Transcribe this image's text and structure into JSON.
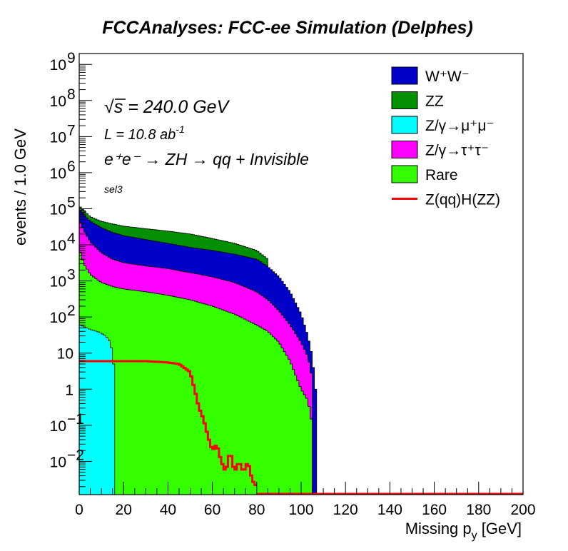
{
  "chart_data": {
    "type": "histogram-stacked",
    "title": "FCCAnalyses: FCC-ee Simulation (Delphes)",
    "xlabel": "Missing p_y [GeV]",
    "ylabel": "events / 1.0 GeV",
    "xlim": [
      0,
      200
    ],
    "ylim": [
      0.0012,
      2000000000
    ],
    "ylog": true,
    "legend_position": "top-right",
    "x_ticks": [
      0,
      20,
      40,
      60,
      80,
      100,
      120,
      140,
      160,
      180,
      200
    ],
    "y_ticks": [
      {
        "value": 1000000000.0,
        "label": "10",
        "exp": "9"
      },
      {
        "value": 100000000.0,
        "label": "10",
        "exp": "8"
      },
      {
        "value": 10000000.0,
        "label": "10",
        "exp": "7"
      },
      {
        "value": 1000000.0,
        "label": "10",
        "exp": "6"
      },
      {
        "value": 100000.0,
        "label": "10",
        "exp": "5"
      },
      {
        "value": 10000.0,
        "label": "10",
        "exp": "4"
      },
      {
        "value": 1000.0,
        "label": "10",
        "exp": "3"
      },
      {
        "value": 100.0,
        "label": "10",
        "exp": "2"
      },
      {
        "value": 10,
        "label": "10",
        "exp": ""
      },
      {
        "value": 1,
        "label": "1",
        "exp": ""
      },
      {
        "value": 0.1,
        "label": "10",
        "exp": "−1"
      },
      {
        "value": 0.01,
        "label": "10",
        "exp": "−2"
      }
    ],
    "annotations": {
      "sqrt_s": "= 240.0 GeV",
      "lumi_prefix": "L = 10.8 ab",
      "lumi_exp": "-1",
      "process": "e⁺e⁻ → ZH → qq + Invisible",
      "selection": "sel3"
    },
    "stack_series": [
      {
        "name": "W⁺W⁻",
        "color": "#0000c8",
        "x": [
          0,
          2,
          5,
          10,
          15,
          20,
          30,
          40,
          50,
          60,
          70,
          80,
          85,
          90,
          95,
          100,
          103,
          105,
          106,
          107
        ],
        "values": [
          100000,
          70000,
          45000,
          30000,
          22000,
          18000,
          14000,
          11000,
          8500,
          7000,
          5500,
          4000,
          2500,
          1300,
          500,
          120,
          30,
          8,
          2,
          0.5
        ]
      },
      {
        "name": "ZZ",
        "color": "#009000",
        "x": [
          0,
          2,
          5,
          10,
          15,
          20,
          30,
          40,
          50,
          60,
          70,
          80,
          85
        ],
        "values": [
          120000,
          90000,
          60000,
          45000,
          38000,
          33000,
          28000,
          24000,
          20000,
          15000,
          11000,
          7000,
          4000
        ]
      },
      {
        "name": "Z/γ→μ⁺μ⁻",
        "color": "#00ffff",
        "x": [
          0,
          2,
          5,
          8,
          10,
          12,
          14,
          15,
          16
        ],
        "values": [
          60,
          55,
          45,
          40,
          35,
          30,
          20,
          10,
          0
        ]
      },
      {
        "name": "Z/γ→τ⁺τ⁻",
        "color": "#ff00ff",
        "x": [
          0,
          2,
          5,
          10,
          15,
          20,
          30,
          40,
          50,
          60,
          70,
          80,
          85,
          90,
          95,
          100,
          103,
          105
        ],
        "values": [
          50000,
          25000,
          12000,
          6000,
          4000,
          3200,
          2600,
          2200,
          1700,
          1300,
          900,
          500,
          300,
          150,
          60,
          20,
          8,
          2
        ]
      },
      {
        "name": "Rare",
        "color": "#33ff00",
        "x": [
          0,
          2,
          5,
          10,
          15,
          20,
          30,
          40,
          50,
          60,
          70,
          80,
          85,
          90,
          95,
          100,
          103,
          105
        ],
        "values": [
          8000,
          3000,
          1500,
          900,
          700,
          600,
          500,
          400,
          300,
          200,
          120,
          60,
          40,
          20,
          6,
          1,
          0.5,
          0.1
        ]
      }
    ],
    "line_series": [
      {
        "name": "Z(qq)H(ZZ)",
        "color": "#ff0000",
        "x": [
          0,
          5,
          10,
          20,
          30,
          40,
          45,
          50,
          52,
          54,
          56,
          58,
          60,
          62,
          64,
          66,
          68,
          70,
          72,
          74,
          76,
          78,
          80
        ],
        "values": [
          6,
          6,
          6,
          6,
          6,
          5.5,
          5,
          3,
          1,
          0.3,
          0.15,
          0.05,
          0.02,
          0.03,
          0.01,
          0.005,
          0.02,
          0.005,
          0.01,
          0.005,
          0.01,
          0.003,
          0.002
        ]
      }
    ]
  }
}
